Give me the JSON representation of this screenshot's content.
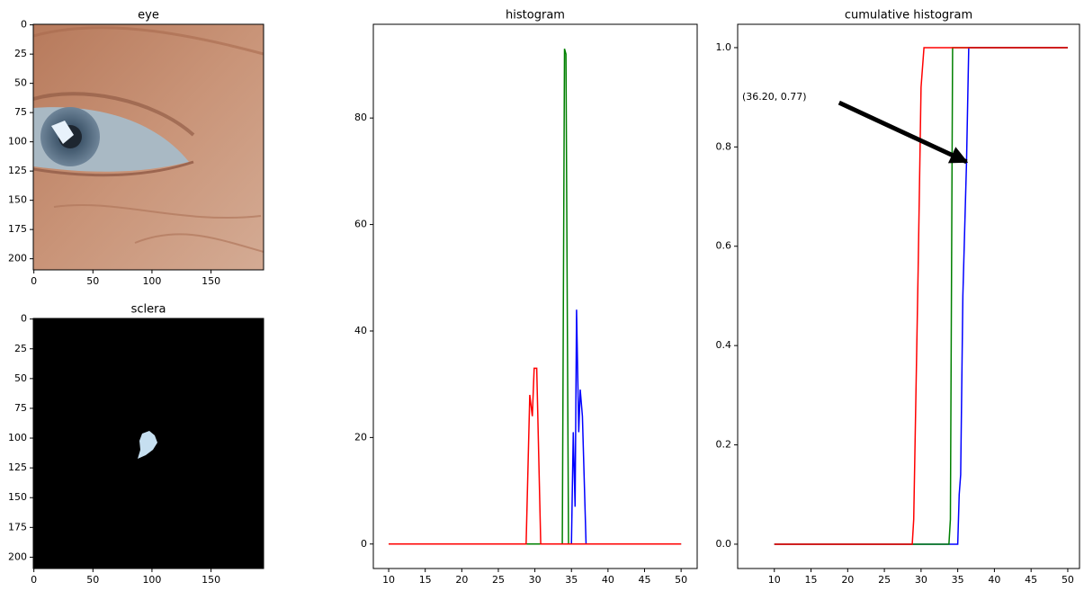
{
  "chart_data": [
    {
      "type": "image",
      "title": "eye",
      "xlim": [
        -0.5,
        194.5
      ],
      "ylim": [
        209.5,
        -0.5
      ],
      "xticks": [
        0,
        50,
        100,
        150
      ],
      "yticks": [
        0,
        25,
        50,
        75,
        100,
        125,
        150,
        175,
        200
      ]
    },
    {
      "type": "image",
      "title": "sclera",
      "xlim": [
        -0.5,
        194.5
      ],
      "ylim": [
        209.5,
        -0.5
      ],
      "xticks": [
        0,
        50,
        100,
        150
      ],
      "yticks": [
        0,
        25,
        50,
        75,
        100,
        125,
        150,
        175,
        200
      ]
    },
    {
      "type": "line",
      "title": "histogram",
      "xlim": [
        7.9,
        52.2
      ],
      "ylim": [
        -4.6,
        97.6
      ],
      "xticks": [
        10,
        15,
        20,
        25,
        30,
        35,
        40,
        45,
        50
      ],
      "yticks": [
        0,
        20,
        40,
        60,
        80
      ],
      "series": [
        {
          "color": "#0000ff",
          "x": [
            10,
            35.0,
            35.25,
            35.5,
            35.7,
            36.0,
            36.2,
            36.5,
            37.0,
            50
          ],
          "values": [
            0,
            0,
            21,
            7,
            44,
            21,
            29,
            24,
            0,
            0
          ]
        },
        {
          "color": "#008000",
          "x": [
            10,
            33.75,
            34.05,
            34.25,
            34.6,
            50
          ],
          "values": [
            0,
            0,
            93,
            92,
            0,
            0
          ]
        },
        {
          "color": "#ff0000",
          "x": [
            10,
            28.8,
            29.3,
            29.65,
            29.9,
            30.25,
            30.8,
            50
          ],
          "values": [
            0,
            0,
            28,
            24,
            33,
            33,
            0,
            0
          ]
        }
      ]
    },
    {
      "type": "line",
      "title": "cumulative histogram",
      "xlim": [
        5.0,
        51.6
      ],
      "ylim": [
        -0.049,
        1.047
      ],
      "xticks": [
        10,
        15,
        20,
        25,
        30,
        35,
        40,
        45,
        50
      ],
      "yticks": [
        {
          "value": 0,
          "label": "0.0"
        },
        0.2,
        0.4,
        0.6,
        0.8,
        {
          "value": 1,
          "label": "1.0"
        }
      ],
      "series": [
        {
          "color": "#0000ff",
          "x": [
            10,
            35.0,
            35.2,
            35.4,
            35.7,
            36.2,
            36.5,
            50
          ],
          "values": [
            0,
            0,
            0.1,
            0.14,
            0.5,
            0.77,
            1.0,
            1.0
          ]
        },
        {
          "color": "#008000",
          "x": [
            10,
            33.8,
            34.0,
            34.3,
            50
          ],
          "values": [
            0,
            0,
            0.05,
            1.0,
            1.0
          ]
        },
        {
          "color": "#ff0000",
          "x": [
            10,
            28.8,
            29.0,
            29.6,
            30.0,
            30.4,
            50
          ],
          "values": [
            0,
            0,
            0.05,
            0.55,
            0.92,
            1.0,
            1.0
          ]
        }
      ],
      "annotation": {
        "text": "(36.20, 0.77)",
        "xy": [
          36.2,
          0.77
        ],
        "xytext": [
          10,
          0.9
        ]
      }
    }
  ]
}
